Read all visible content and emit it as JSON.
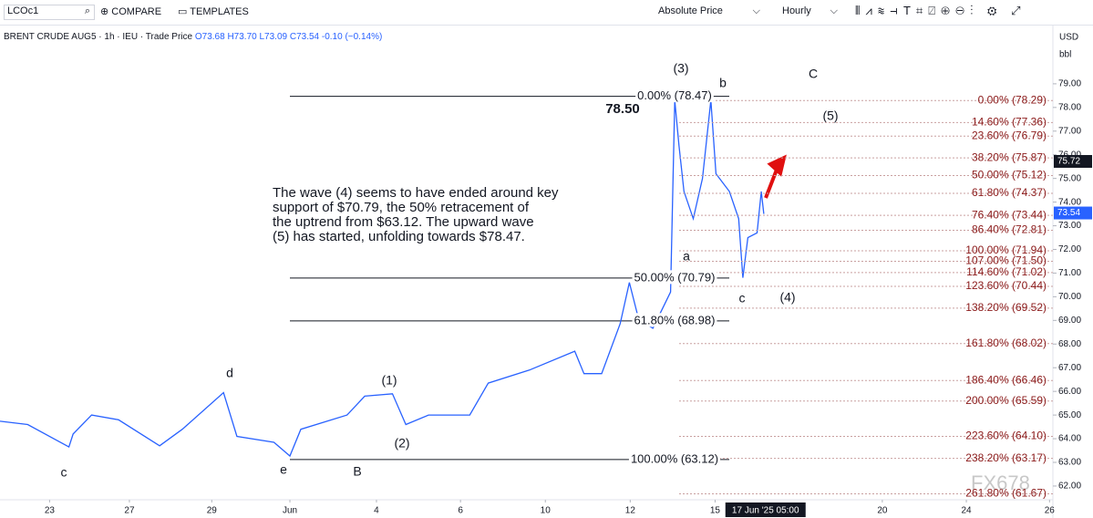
{
  "toolbar": {
    "symbol": "LCOc1",
    "compare": "COMPARE",
    "templates": "TEMPLATES",
    "price_mode": "Absolute Price",
    "interval": "Hourly"
  },
  "legend": {
    "title": "BRENT CRUDE AUG5 · 1h · IEU · Trade Price",
    "ohlc": "O73.68 H73.70 L73.09 C73.54 -0.10 (−0.14%)"
  },
  "note": [
    "The wave (4) seems to have ended around key",
    "support of $70.79, the 50% retracement of",
    "the uptrend from $63.12. The upward wave",
    "(5) has started, unfolding towards $78.47."
  ],
  "annotations": [
    "(3)",
    "78.50",
    "b",
    "C",
    "(5)",
    "a",
    "c",
    "(4)",
    "d",
    "(1)",
    "(2)",
    "c",
    "e",
    "B"
  ],
  "watermark": "FX678",
  "chart_data": {
    "type": "line",
    "color": "#2962ff",
    "x": [
      -0.59,
      -0.26,
      0.23,
      0.28,
      0.5,
      0.82,
      1.31,
      1.58,
      2.07,
      2.23,
      2.67,
      2.86,
      2.99,
      3.54,
      3.75,
      4.08,
      4.24,
      4.51,
      5.0,
      5.22,
      5.71,
      6.25,
      6.36,
      6.57,
      6.79,
      6.9,
      7.01,
      7.18,
      7.39,
      7.44,
      7.49,
      7.55,
      7.66,
      7.77,
      7.87,
      7.93,
      8.09,
      8.2,
      8.25,
      8.31,
      8.42,
      8.47,
      8.5
    ],
    "values": [
      64.74,
      64.6,
      63.65,
      64.2,
      65.0,
      64.8,
      63.7,
      64.4,
      65.95,
      64.1,
      63.85,
      63.27,
      64.4,
      65.0,
      65.8,
      65.9,
      64.6,
      65.0,
      65.0,
      66.35,
      66.9,
      67.7,
      66.75,
      66.75,
      68.86,
      70.6,
      69.05,
      68.67,
      70.2,
      78.3,
      76.4,
      74.45,
      73.3,
      75.0,
      78.3,
      75.2,
      74.45,
      73.3,
      70.8,
      72.5,
      72.7,
      74.45,
      73.5
    ],
    "xlim": [
      -0.59,
      11.94
    ],
    "ylim": [
      61.42,
      80.73
    ],
    "xticks": [
      {
        "value": 0,
        "label": "23"
      },
      {
        "value": 0.95,
        "label": "27"
      },
      {
        "value": 1.93,
        "label": "29"
      },
      {
        "value": 2.86,
        "label": "Jun"
      },
      {
        "value": 3.89,
        "label": "4"
      },
      {
        "value": 4.89,
        "label": "6"
      },
      {
        "value": 5.9,
        "label": "10"
      },
      {
        "value": 6.91,
        "label": "12"
      },
      {
        "value": 7.92,
        "label": "15"
      },
      {
        "value": 9.91,
        "label": "20"
      },
      {
        "value": 10.91,
        "label": "24"
      },
      {
        "value": 11.9,
        "label": "26"
      }
    ],
    "crosshair": {
      "value": 8.52,
      "label": "17 Jun '25  05:00"
    },
    "yticks": [
      {
        "value": 79,
        "label": "79.00"
      },
      {
        "value": 78,
        "label": "78.00"
      },
      {
        "value": 77,
        "label": "77.00"
      },
      {
        "value": 76,
        "label": "76.00"
      },
      {
        "value": 75,
        "label": "75.00"
      },
      {
        "value": 74,
        "label": "74.00"
      },
      {
        "value": 73,
        "label": "73.00"
      },
      {
        "value": 72,
        "label": "72.00"
      },
      {
        "value": 71,
        "label": "71.00"
      },
      {
        "value": 70,
        "label": "70.00"
      },
      {
        "value": 69,
        "label": "69.00"
      },
      {
        "value": 68,
        "label": "68.00"
      },
      {
        "value": 67,
        "label": "67.00"
      },
      {
        "value": 66,
        "label": "66.00"
      },
      {
        "value": 65,
        "label": "65.00"
      },
      {
        "value": 64,
        "label": "64.00"
      },
      {
        "value": 63,
        "label": "63.00"
      },
      {
        "value": 62,
        "label": "62.00"
      }
    ],
    "y_unit": "USD",
    "y_unit_sub": "bbl",
    "price_tags": [
      {
        "value": 75.72,
        "color": "#131722"
      },
      {
        "value": 73.54,
        "color": "#2962ff"
      }
    ],
    "fib_left": [
      {
        "value": 78.47,
        "label": "0.00% (78.47)"
      },
      {
        "value": 70.79,
        "label": "50.00% (70.79)"
      },
      {
        "value": 68.98,
        "label": "61.80% (68.98)"
      },
      {
        "value": 63.12,
        "label": "100.00% (63.12)"
      }
    ],
    "fib_right": [
      {
        "value": 78.29,
        "label": "0.00% (78.29)"
      },
      {
        "value": 77.36,
        "label": "14.60% (77.36)"
      },
      {
        "value": 76.79,
        "label": "23.60% (76.79)"
      },
      {
        "value": 75.87,
        "label": "38.20% (75.87)"
      },
      {
        "value": 75.12,
        "label": "50.00% (75.12)"
      },
      {
        "value": 74.37,
        "label": "61.80% (74.37)"
      },
      {
        "value": 73.44,
        "label": "76.40% (73.44)"
      },
      {
        "value": 72.81,
        "label": "86.40% (72.81)"
      },
      {
        "value": 71.94,
        "label": "100.00% (71.94)"
      },
      {
        "value": 71.5,
        "label": "107.00% (71.50)"
      },
      {
        "value": 71.02,
        "label": "114.60% (71.02)"
      },
      {
        "value": 70.44,
        "label": "123.60% (70.44)"
      },
      {
        "value": 69.52,
        "label": "138.20% (69.52)"
      },
      {
        "value": 68.02,
        "label": "161.80% (68.02)"
      },
      {
        "value": 66.46,
        "label": "186.40% (66.46)"
      },
      {
        "value": 65.59,
        "label": "200.00% (65.59)"
      },
      {
        "value": 64.1,
        "label": "223.60% (64.10)"
      },
      {
        "value": 63.17,
        "label": "238.20% (63.17)"
      },
      {
        "value": 61.67,
        "label": "261.80% (61.67)"
      }
    ]
  }
}
